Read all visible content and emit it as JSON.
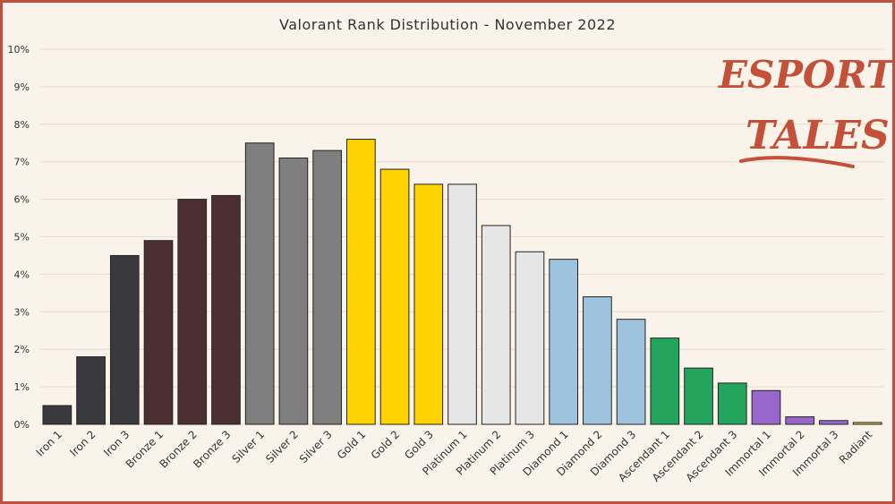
{
  "chart_data": {
    "type": "bar",
    "title": "Valorant Rank Distribution  - November 2022",
    "xlabel": "",
    "ylabel": "",
    "ylim": [
      0,
      10
    ],
    "yticks": [
      "0%",
      "1%",
      "2%",
      "3%",
      "4%",
      "5%",
      "6%",
      "7%",
      "8%",
      "9%",
      "10%"
    ],
    "grid": true,
    "categories": [
      "Iron 1",
      "Iron 2",
      "Iron 3",
      "Bronze 1",
      "Bronze 2",
      "Bronze 3",
      "Silver 1",
      "Silver 2",
      "Silver 3",
      "Gold 1",
      "Gold 2",
      "Gold 3",
      "Platinum 1",
      "Platinum 2",
      "Platinum 3",
      "Diamond 1",
      "Diamond 2",
      "Diamond 3",
      "Ascendant 1",
      "Ascendant 2",
      "Ascendant 3",
      "Immortal 1",
      "Immortal 2",
      "Immortal 3",
      "Radiant"
    ],
    "values": [
      0.5,
      1.8,
      4.5,
      4.9,
      6.0,
      6.1,
      7.5,
      7.1,
      7.3,
      7.6,
      6.8,
      6.4,
      6.4,
      5.3,
      4.6,
      4.4,
      3.4,
      2.8,
      2.3,
      1.5,
      1.1,
      0.9,
      0.2,
      0.1,
      0.05
    ],
    "colors": [
      "#3a3a3e",
      "#3a3a3e",
      "#3a3a3e",
      "#4e2f31",
      "#4e2f31",
      "#4e2f31",
      "#7f7f7f",
      "#7f7f7f",
      "#7f7f7f",
      "#fed300",
      "#fed300",
      "#fed300",
      "#e6e6e6",
      "#e6e6e6",
      "#e6e6e6",
      "#9dc3de",
      "#9dc3de",
      "#9dc3de",
      "#24a55e",
      "#24a55e",
      "#24a55e",
      "#9966cc",
      "#9966cc",
      "#9966cc",
      "#f1c75a"
    ]
  },
  "logo": {
    "line1": "ESPORTS",
    "line2": "TALES",
    "color": "#c4503a"
  }
}
